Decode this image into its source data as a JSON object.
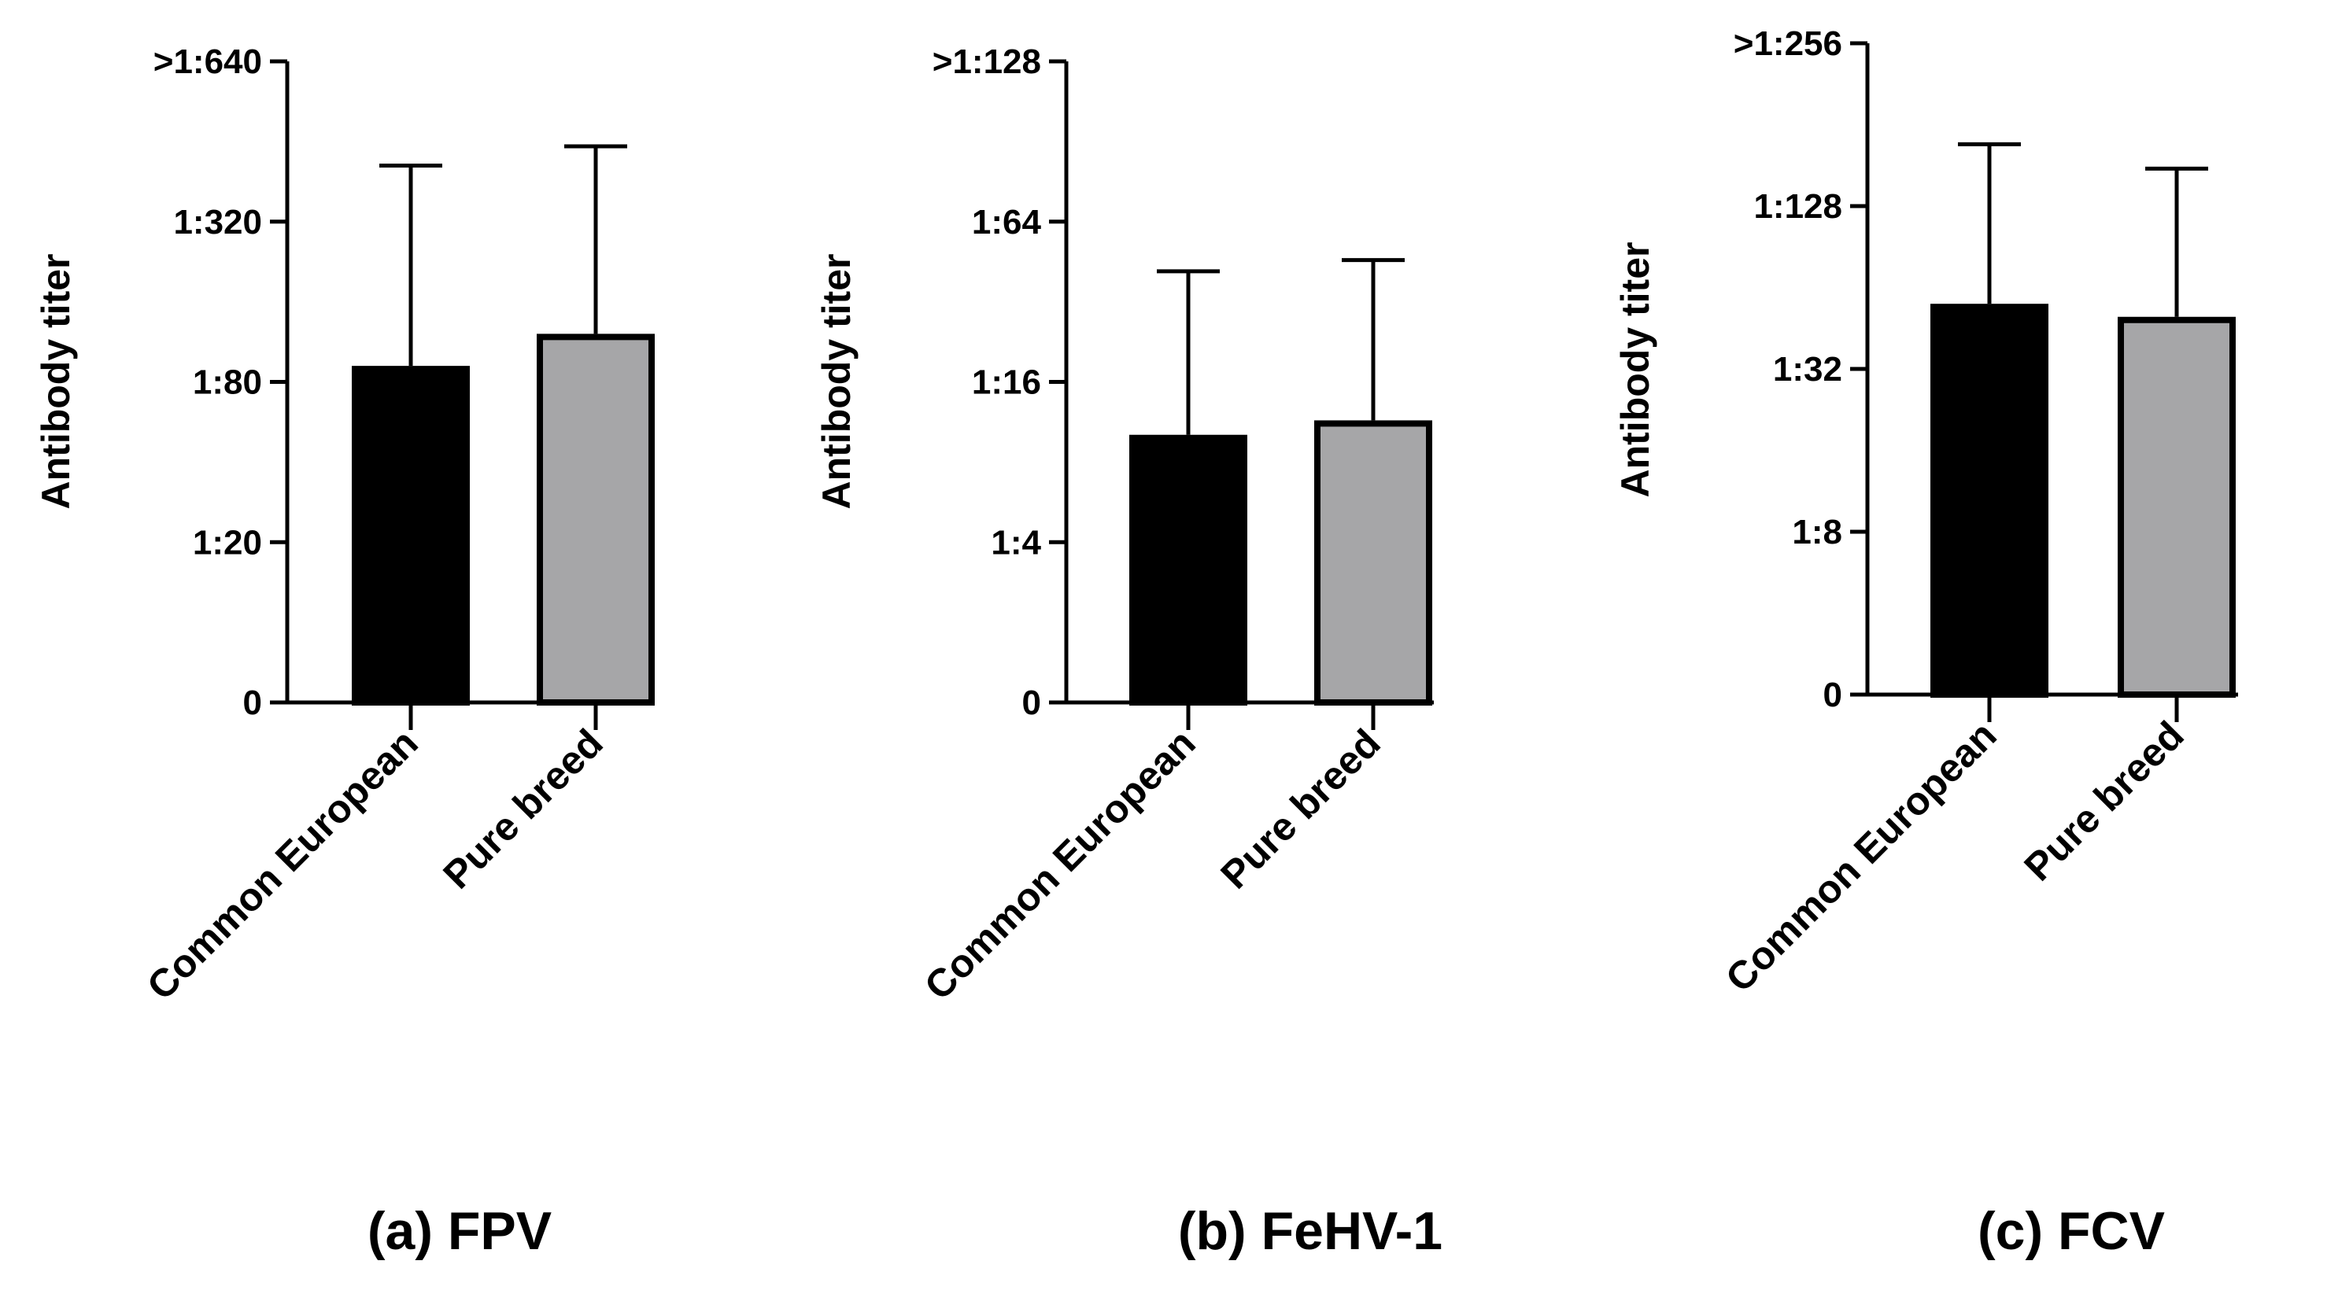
{
  "chart_data": [
    {
      "type": "bar",
      "panel": "a",
      "caption": "(a) FPV",
      "ylabel": "Antibody titer",
      "yscale": "log2-dilution",
      "tick_labels": [
        "0",
        "1:20",
        "1:80",
        "1:320",
        ">1:640"
      ],
      "ylim": [
        0,
        4
      ],
      "categories": [
        "Common European",
        "Pure breed"
      ],
      "values": [
        2.1,
        2.3
      ],
      "error_upper": [
        3.35,
        3.47
      ],
      "colors": [
        "#000000",
        "#a6a6a8"
      ]
    },
    {
      "type": "bar",
      "panel": "b",
      "caption": "(b) FeHV-1",
      "ylabel": "Antibody titer",
      "yscale": "log2-dilution",
      "tick_labels": [
        "0",
        "1:4",
        "1:16",
        "1:64",
        ">1:128"
      ],
      "ylim": [
        0,
        4
      ],
      "categories": [
        "Common European",
        "Pure breed"
      ],
      "values": [
        1.67,
        1.76
      ],
      "error_upper": [
        2.69,
        2.76
      ],
      "colors": [
        "#000000",
        "#a6a6a8"
      ]
    },
    {
      "type": "bar",
      "panel": "c",
      "caption": "(c) FCV",
      "ylabel": "Antibody titer",
      "yscale": "log2-dilution",
      "tick_labels": [
        "0",
        "1:8",
        "1:32",
        "1:128",
        ">1:256"
      ],
      "ylim": [
        0,
        4
      ],
      "categories": [
        "Common European",
        "Pure breed"
      ],
      "values": [
        2.4,
        2.32
      ],
      "error_upper": [
        3.38,
        3.23
      ],
      "colors": [
        "#000000",
        "#a6a6a8"
      ]
    }
  ]
}
